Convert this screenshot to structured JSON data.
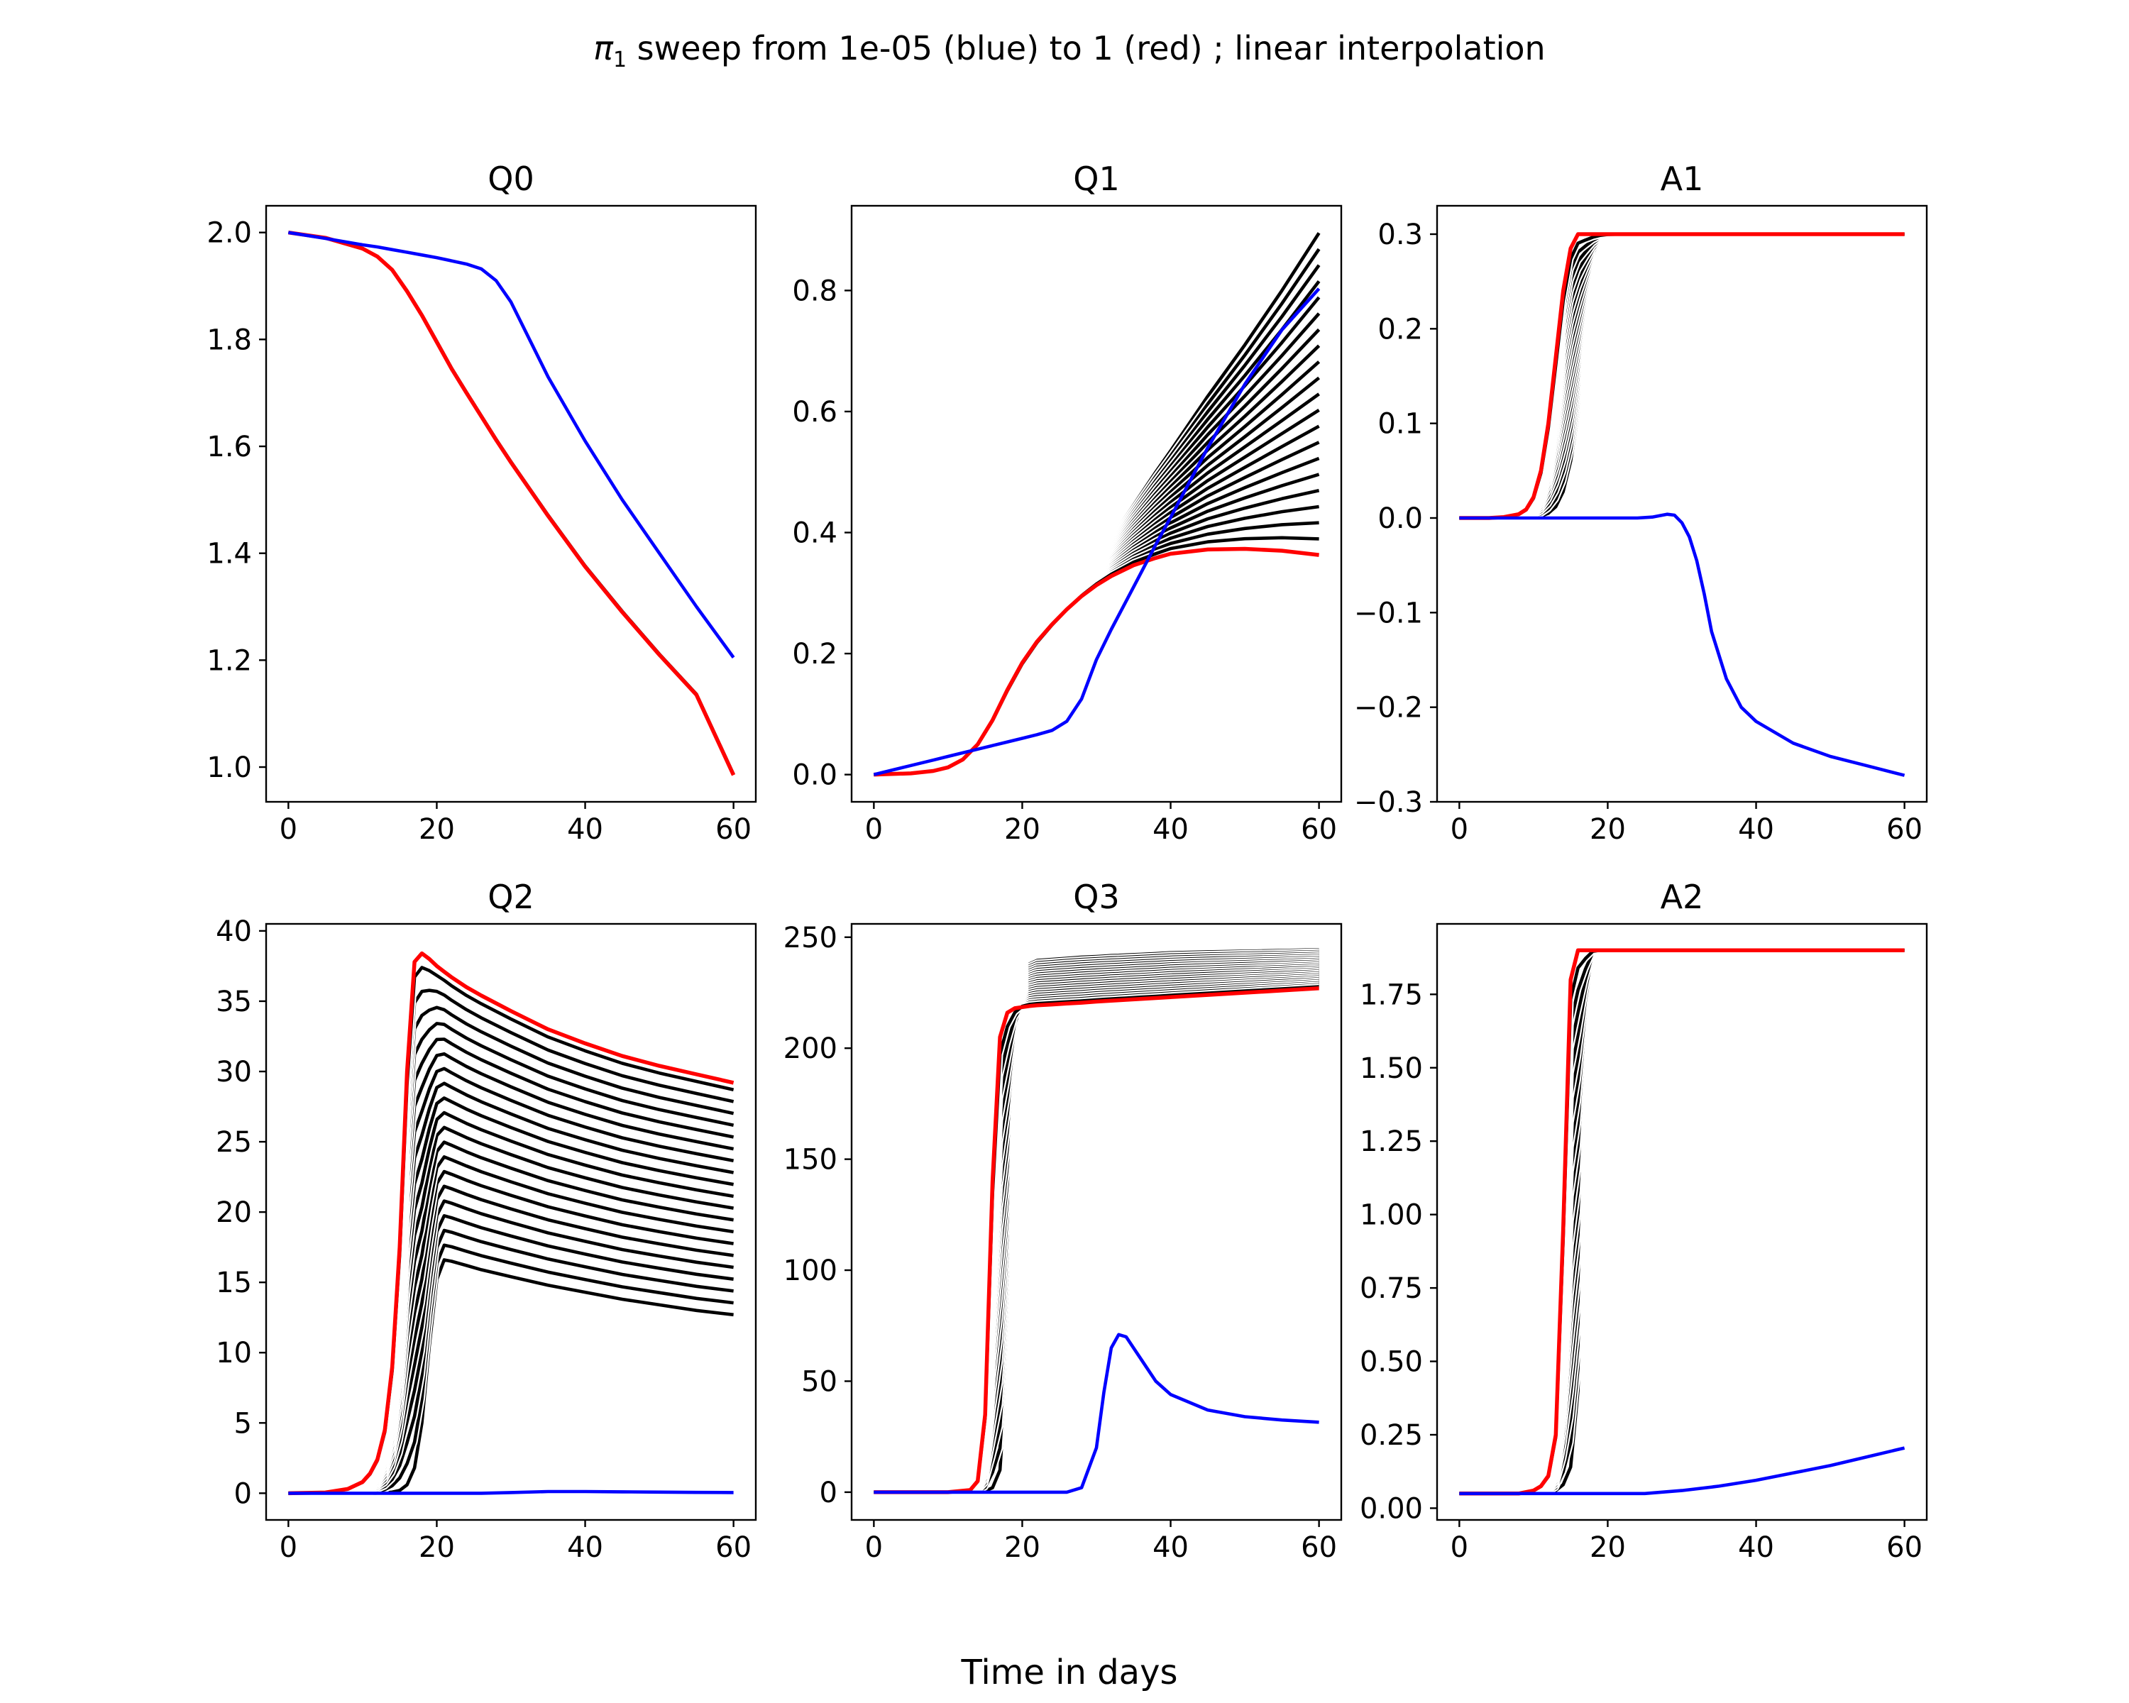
{
  "figure": {
    "title_prefix": "π",
    "title_subscript": "1",
    "title_suffix": " sweep from 1e-05 (blue) to 1 (red) ; linear interpolation",
    "xlabel": "Time in days",
    "colors": {
      "first": "#0000ff",
      "middle": "#000000",
      "last": "#ff0000",
      "sweep_outline": "#ffffff"
    }
  },
  "chart_data": [
    {
      "type": "line",
      "title": "Q0",
      "xlim": [
        -3,
        63
      ],
      "ylim": [
        0.935,
        2.05
      ],
      "xticks": [
        0,
        20,
        40,
        60
      ],
      "xtick_labels": [
        "0",
        "20",
        "40",
        "60"
      ],
      "yticks": [
        1.0,
        1.2,
        1.4,
        1.6,
        1.8,
        2.0
      ],
      "ytick_labels": [
        "1.0",
        "1.2",
        "1.4",
        "1.6",
        "1.8",
        "2.0"
      ],
      "x": [
        0,
        5,
        10,
        12,
        14,
        16,
        18,
        20,
        22,
        24,
        26,
        28,
        30,
        35,
        40,
        45,
        50,
        55,
        60
      ],
      "sweep": {
        "count": 20,
        "black_from": 0.15,
        "black_to": 0.97
      },
      "series": [
        {
          "role": "first",
          "values": [
            2.0,
            1.989,
            1.977,
            1.973,
            1.968,
            1.963,
            1.958,
            1.953,
            1.947,
            1.941,
            1.932,
            1.91,
            1.87,
            1.73,
            1.61,
            1.5,
            1.4,
            1.3,
            1.205
          ]
        },
        {
          "role": "black_start",
          "values": [
            2.0,
            1.99,
            1.975,
            1.963,
            1.945,
            1.915,
            1.876,
            1.831,
            1.784,
            1.738,
            1.694,
            1.651,
            1.609,
            1.511,
            1.42,
            1.335,
            1.255,
            1.18,
            1.037
          ]
        },
        {
          "role": "last",
          "values": [
            2.0,
            1.99,
            1.97,
            1.955,
            1.93,
            1.89,
            1.845,
            1.795,
            1.745,
            1.7,
            1.656,
            1.612,
            1.57,
            1.47,
            1.375,
            1.29,
            1.21,
            1.135,
            0.985
          ]
        }
      ]
    },
    {
      "type": "line",
      "title": "Q1",
      "xlim": [
        -3,
        63
      ],
      "ylim": [
        -0.045,
        0.94
      ],
      "xticks": [
        0,
        20,
        40,
        60
      ],
      "xtick_labels": [
        "0",
        "20",
        "40",
        "60"
      ],
      "yticks": [
        0.0,
        0.2,
        0.4,
        0.6,
        0.8
      ],
      "ytick_labels": [
        "0.0",
        "0.2",
        "0.4",
        "0.6",
        "0.8"
      ],
      "x": [
        0,
        5,
        8,
        10,
        12,
        14,
        16,
        18,
        20,
        22,
        24,
        26,
        28,
        30,
        32,
        35,
        38,
        40,
        45,
        50,
        55,
        60
      ],
      "sweep": {
        "count": 20,
        "black_from": 0.0,
        "black_to": 0.95
      },
      "series": [
        {
          "role": "first",
          "values": [
            0.0,
            0.015,
            0.024,
            0.03,
            0.036,
            0.042,
            0.048,
            0.054,
            0.06,
            0.066,
            0.073,
            0.088,
            0.125,
            0.19,
            0.24,
            0.31,
            0.38,
            0.425,
            0.54,
            0.645,
            0.735,
            0.803
          ]
        },
        {
          "role": "black_start",
          "values": [
            0.0,
            0.002,
            0.006,
            0.012,
            0.025,
            0.045,
            0.075,
            0.11,
            0.15,
            0.19,
            0.23,
            0.27,
            0.31,
            0.35,
            0.39,
            0.445,
            0.5,
            0.535,
            0.625,
            0.71,
            0.8,
            0.895
          ]
        },
        {
          "role": "last",
          "values": [
            0.0,
            0.002,
            0.006,
            0.012,
            0.025,
            0.05,
            0.09,
            0.14,
            0.185,
            0.22,
            0.248,
            0.273,
            0.295,
            0.313,
            0.328,
            0.346,
            0.358,
            0.365,
            0.372,
            0.373,
            0.37,
            0.363
          ]
        }
      ]
    },
    {
      "type": "line",
      "title": "A1",
      "xlim": [
        -3,
        63
      ],
      "ylim": [
        -0.3,
        0.33
      ],
      "xticks": [
        0,
        20,
        40,
        60
      ],
      "xtick_labels": [
        "0",
        "20",
        "40",
        "60"
      ],
      "yticks": [
        -0.3,
        -0.2,
        -0.1,
        0.0,
        0.1,
        0.2,
        0.3
      ],
      "ytick_labels": [
        "−0.3",
        "−0.2",
        "−0.1",
        "0.0",
        "0.1",
        "0.2",
        "0.3"
      ],
      "x": [
        0,
        4,
        6,
        8,
        9,
        10,
        11,
        12,
        13,
        14,
        15,
        16,
        17,
        18,
        19,
        20,
        22,
        24,
        26,
        28,
        29,
        30,
        31,
        32,
        33,
        34,
        36,
        38,
        40,
        45,
        50,
        55,
        60
      ],
      "sweep": {
        "count": 20,
        "black_from": 0.0,
        "black_to": 0.95
      },
      "series": [
        {
          "role": "first",
          "values": [
            0.0,
            0.0,
            0.0,
            0.0,
            0.0,
            0.0,
            0.0,
            0.0,
            0.0,
            0.0,
            0.0,
            0.0,
            0.0,
            0.0,
            0.0,
            0.0,
            0.0,
            0.0,
            0.001,
            0.004,
            0.003,
            -0.005,
            -0.02,
            -0.045,
            -0.08,
            -0.12,
            -0.17,
            -0.2,
            -0.215,
            -0.238,
            -0.252,
            -0.262,
            -0.272
          ]
        },
        {
          "role": "black_start",
          "values": [
            0.0,
            0.0,
            0.0,
            0.0,
            0.0,
            0.001,
            0.002,
            0.005,
            0.012,
            0.028,
            0.06,
            0.11,
            0.175,
            0.235,
            0.275,
            0.292,
            0.3,
            0.3,
            0.3,
            0.3,
            0.3,
            0.3,
            0.3,
            0.3,
            0.3,
            0.3,
            0.3,
            0.3,
            0.3,
            0.3,
            0.3,
            0.3,
            0.3
          ]
        },
        {
          "role": "last",
          "values": [
            0.0,
            0.0,
            0.001,
            0.004,
            0.009,
            0.022,
            0.05,
            0.1,
            0.17,
            0.24,
            0.285,
            0.3,
            0.3,
            0.3,
            0.3,
            0.3,
            0.3,
            0.3,
            0.3,
            0.3,
            0.3,
            0.3,
            0.3,
            0.3,
            0.3,
            0.3,
            0.3,
            0.3,
            0.3,
            0.3,
            0.3,
            0.3,
            0.3
          ]
        }
      ]
    },
    {
      "type": "line",
      "title": "Q2",
      "xlim": [
        -3,
        63
      ],
      "ylim": [
        -1.9,
        40.5
      ],
      "xticks": [
        0,
        20,
        40,
        60
      ],
      "xtick_labels": [
        "0",
        "20",
        "40",
        "60"
      ],
      "yticks": [
        0,
        5,
        10,
        15,
        20,
        25,
        30,
        35,
        40
      ],
      "ytick_labels": [
        "0",
        "5",
        "10",
        "15",
        "20",
        "25",
        "30",
        "35",
        "40"
      ],
      "x": [
        0,
        5,
        8,
        10,
        11,
        12,
        13,
        14,
        15,
        16,
        17,
        18,
        19,
        20,
        21,
        22,
        24,
        26,
        30,
        35,
        40,
        45,
        50,
        55,
        60
      ],
      "sweep": {
        "count": 20,
        "black_from": 0.0,
        "black_to": 0.97
      },
      "series": [
        {
          "role": "first",
          "values": [
            0.0,
            0.0,
            0.0,
            0.0,
            0.0,
            0.0,
            0.0,
            0.0,
            0.0,
            0.0,
            0.0,
            0.0,
            0.0,
            0.0,
            0.0,
            0.0,
            0.0,
            0.0,
            0.05,
            0.12,
            0.12,
            0.1,
            0.08,
            0.06,
            0.05
          ]
        },
        {
          "role": "black_start",
          "values": [
            0.0,
            0.0,
            0.0,
            0.0,
            0.0,
            0.01,
            0.03,
            0.08,
            0.2,
            0.6,
            1.8,
            5.0,
            10.5,
            15.2,
            16.6,
            16.5,
            16.2,
            15.9,
            15.4,
            14.8,
            14.3,
            13.8,
            13.4,
            13.0,
            12.7
          ]
        },
        {
          "role": "last",
          "values": [
            0.0,
            0.05,
            0.3,
            0.8,
            1.4,
            2.4,
            4.5,
            9.0,
            17.5,
            30.0,
            37.8,
            38.4,
            38.0,
            37.5,
            37.1,
            36.7,
            36.0,
            35.4,
            34.3,
            33.0,
            32.0,
            31.1,
            30.4,
            29.8,
            29.2
          ]
        }
      ]
    },
    {
      "type": "line",
      "title": "Q3",
      "xlim": [
        -3,
        63
      ],
      "ylim": [
        -12.5,
        256
      ],
      "xticks": [
        0,
        20,
        40,
        60
      ],
      "xtick_labels": [
        "0",
        "20",
        "40",
        "60"
      ],
      "yticks": [
        0,
        50,
        100,
        150,
        200,
        250
      ],
      "ytick_labels": [
        "0",
        "50",
        "100",
        "150",
        "200",
        "250"
      ],
      "x": [
        0,
        10,
        13,
        14,
        15,
        16,
        17,
        18,
        19,
        20,
        21,
        22,
        24,
        26,
        28,
        30,
        31,
        32,
        33,
        34,
        36,
        38,
        40,
        45,
        50,
        55,
        60
      ],
      "sweep": {
        "count": 20,
        "black_from": 0.0,
        "black_to": 0.96
      },
      "series": [
        {
          "role": "first",
          "values": [
            0,
            0,
            0,
            0,
            0,
            0,
            0,
            0,
            0,
            0,
            0,
            0,
            0,
            0,
            2,
            20,
            45,
            65,
            71,
            70,
            60,
            50,
            44,
            37,
            34,
            32.5,
            31.5
          ]
        },
        {
          "role": "black_start",
          "values": [
            0,
            0,
            0,
            0,
            0.5,
            2,
            10,
            60,
            170,
            228,
            238,
            239.5,
            240,
            240.5,
            241,
            241.3,
            241.5,
            241.7,
            241.8,
            242,
            242.3,
            242.6,
            243,
            243.4,
            243.7,
            244,
            244.4
          ]
        },
        {
          "role": "last",
          "values": [
            0,
            0,
            1,
            5,
            35,
            140,
            205,
            216,
            218,
            218.5,
            219,
            219.3,
            219.7,
            220.1,
            220.5,
            221,
            221.2,
            221.4,
            221.6,
            221.8,
            222.2,
            222.6,
            223,
            224,
            225,
            226,
            227
          ]
        }
      ]
    },
    {
      "type": "line",
      "title": "A2",
      "xlim": [
        -3,
        63
      ],
      "ylim": [
        -0.04,
        1.99
      ],
      "xticks": [
        0,
        20,
        40,
        60
      ],
      "xtick_labels": [
        "0",
        "20",
        "40",
        "60"
      ],
      "yticks": [
        0.0,
        0.25,
        0.5,
        0.75,
        1.0,
        1.25,
        1.5,
        1.75
      ],
      "ytick_labels": [
        "0.00",
        "0.25",
        "0.50",
        "0.75",
        "1.00",
        "1.25",
        "1.50",
        "1.75"
      ],
      "x": [
        0,
        8,
        10,
        11,
        12,
        13,
        14,
        15,
        16,
        17,
        18,
        19,
        20,
        25,
        30,
        35,
        40,
        45,
        50,
        55,
        60
      ],
      "sweep": {
        "count": 20,
        "black_from": 0.0,
        "black_to": 0.96
      },
      "series": [
        {
          "role": "first",
          "values": [
            0.05,
            0.05,
            0.05,
            0.05,
            0.05,
            0.05,
            0.05,
            0.05,
            0.05,
            0.05,
            0.05,
            0.05,
            0.05,
            0.05,
            0.06,
            0.075,
            0.095,
            0.12,
            0.145,
            0.175,
            0.205
          ]
        },
        {
          "role": "black_start",
          "values": [
            0.05,
            0.05,
            0.05,
            0.05,
            0.052,
            0.06,
            0.08,
            0.14,
            0.4,
            1.2,
            1.82,
            1.9,
            1.9,
            1.9,
            1.9,
            1.9,
            1.9,
            1.9,
            1.9,
            1.9,
            1.9
          ]
        },
        {
          "role": "last",
          "values": [
            0.05,
            0.05,
            0.06,
            0.075,
            0.11,
            0.25,
            0.95,
            1.8,
            1.9,
            1.9,
            1.9,
            1.9,
            1.9,
            1.9,
            1.9,
            1.9,
            1.9,
            1.9,
            1.9,
            1.9,
            1.9
          ]
        }
      ]
    }
  ]
}
